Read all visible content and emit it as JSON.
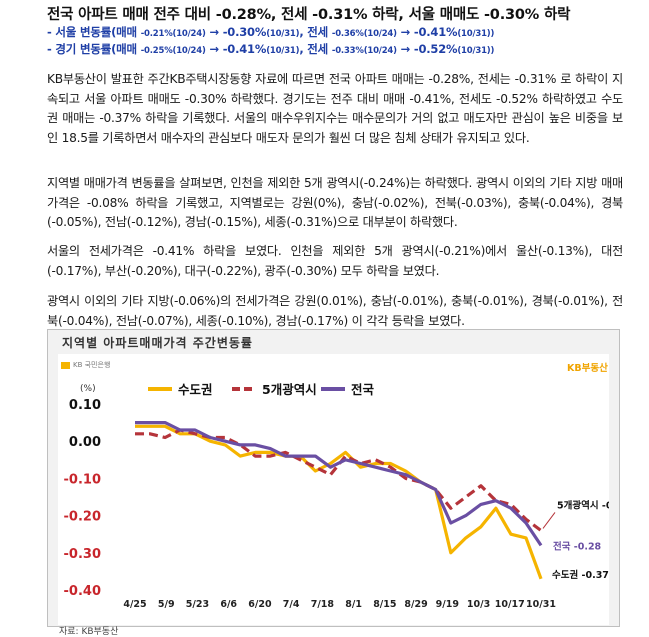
{
  "headline": "전국 아파트 매매 전주 대비 -0.28%, 전세 -0.31% 하락, 서울 매매도 -0.30% 하락",
  "subheads": [
    {
      "prefix": "- 서울 변동률(매매 ",
      "s1": "-0.21%(10/24)",
      "a1": " → ",
      "b1": "-0.30%",
      "s2": "(10/31)",
      "mid": ", 전세 ",
      "s3": "-0.36%(10/24)",
      "a2": " → ",
      "b2": "-0.41%",
      "s4": "(10/31))"
    },
    {
      "prefix": "- 경기 변동률(매매 ",
      "s1": "-0.25%(10/24)",
      "a1": " → ",
      "b1": "-0.41%",
      "s2": "(10/31)",
      "mid": ", 전세 ",
      "s3": "-0.33%(10/24)",
      "a2": " → ",
      "b2": "-0.52%",
      "s4": "(10/31))"
    }
  ],
  "paragraphs": [
    "KB부동산이 발표한 주간KB주택시장동향 자료에 따르면 전국 아파트 매매는 -0.28%, 전세는 -0.31% 로 하락이 지속되고 서울 아파트 매매도 -0.30% 하락했다. 경기도는 전주 대비 매매 -0.41%, 전세도 -0.52% 하락하였고 수도권 매매는 -0.37% 하락을 기록했다. 서울의 매수우위지수는 매수문의가 거의 없고 매도자만 관심이 높은 비중을 보인 18.5를 기록하면서 매수자의 관심보다 매도자 문의가 훨씬 더 많은 침체 상태가 유지되고 있다.",
    "지역별 매매가격 변동률을 살펴보면, 인천을 제외한 5개 광역시(-0.24%)는 하락했다. 광역시 이외의 기타 지방 매매가격은 -0.08% 하락을 기록했고, 지역별로는 강원(0%), 충남(-0.02%), 전북(-0.03%), 충북(-0.04%), 경북(-0.05%), 전남(-0.12%), 경남(-0.15%), 세종(-0.31%)으로 대부분이 하락했다.",
    "서울의 전세가격은 -0.41% 하락을 보였다. 인천을 제외한 5개 광역시(-0.21%)에서 울산(-0.13%), 대전(-0.17%), 부산(-0.20%), 대구(-0.22%), 광주(-0.30%) 모두 하락을 보였다.",
    "광역시 이외의 기타 지방(-0.06%)의 전세가격은 강원(0.01%), 충남(-0.01%), 충북(-0.01%), 경북(-0.01%), 전북(-0.04%), 전남(-0.07%), 세종(-0.10%), 경남(-0.17%) 이 각각 등락을 보였다."
  ],
  "chart_title": "지역별 아파트매매가격 주간변동률",
  "logo_left": "KB 국민은행",
  "logo_right": "KB부동산",
  "footer": "자료: KB부동산",
  "colors": {
    "sudogwon": "#f5b400",
    "metro5": "#b5343a",
    "national": "#6a4fa3",
    "subhead": "#1f3fa6"
  },
  "chart_data": {
    "type": "line",
    "unit_label": "(%)",
    "x_ticks": [
      "4/25",
      "5/9",
      "5/23",
      "6/6",
      "6/20",
      "7/4",
      "7/18",
      "8/1",
      "8/15",
      "8/29",
      "9/19",
      "10/3",
      "10/17",
      "10/31"
    ],
    "ylim": [
      -0.4,
      0.1
    ],
    "y_ticks": [
      "0.10",
      "0.00",
      "-0.10",
      "-0.20",
      "-0.30",
      "-0.40"
    ],
    "legend": [
      "수도권",
      "5개광역시",
      "전국"
    ],
    "series": [
      {
        "name": "수도권",
        "style": "solid",
        "color": "#f5b400",
        "values": [
          0.04,
          0.04,
          0.04,
          0.02,
          0.02,
          0.0,
          -0.01,
          -0.04,
          -0.03,
          -0.03,
          -0.04,
          -0.04,
          -0.08,
          -0.06,
          -0.03,
          -0.07,
          -0.06,
          -0.06,
          -0.08,
          -0.11,
          -0.13,
          -0.3,
          -0.26,
          -0.23,
          -0.18,
          -0.25,
          -0.26,
          -0.37
        ]
      },
      {
        "name": "5개광역시",
        "style": "dashed",
        "color": "#b5343a",
        "values": [
          0.02,
          0.02,
          0.01,
          0.03,
          0.02,
          0.01,
          0.01,
          -0.01,
          -0.04,
          -0.04,
          -0.03,
          -0.05,
          -0.07,
          -0.09,
          -0.04,
          -0.06,
          -0.05,
          -0.07,
          -0.1,
          -0.11,
          -0.13,
          -0.18,
          -0.15,
          -0.12,
          -0.16,
          -0.17,
          -0.21,
          -0.24
        ]
      },
      {
        "name": "전국",
        "style": "solid",
        "color": "#6a4fa3",
        "values": [
          0.05,
          0.05,
          0.05,
          0.03,
          0.03,
          0.01,
          0.0,
          -0.01,
          -0.01,
          -0.02,
          -0.04,
          -0.04,
          -0.04,
          -0.07,
          -0.05,
          -0.06,
          -0.07,
          -0.08,
          -0.09,
          -0.11,
          -0.13,
          -0.22,
          -0.2,
          -0.17,
          -0.16,
          -0.18,
          -0.22,
          -0.28
        ]
      }
    ],
    "end_labels": [
      {
        "series": "5개광역시",
        "text": "5개광역시 -0.24"
      },
      {
        "series": "전국",
        "text": "전국 -0.28"
      },
      {
        "series": "수도권",
        "text": "수도권 -0.37"
      }
    ]
  }
}
